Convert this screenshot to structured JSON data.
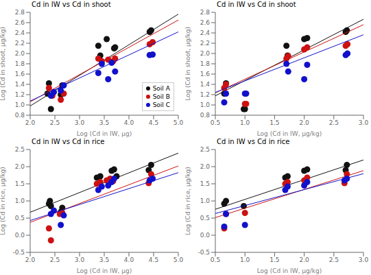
{
  "chart_data": [
    {
      "type": "scatter",
      "title": "Cd in IW vs Cd in shoot",
      "x_label": "Log (Cd in IW, μg)",
      "y_label": "Log (Cd in shoot, μg/kg)",
      "xlim": [
        2.0,
        5.0
      ],
      "ylim": [
        0.8,
        2.8
      ],
      "xticks": [
        {
          "value": 2.0,
          "label": "2.0"
        },
        2.5,
        {
          "value": 3.0,
          "label": "3.0"
        },
        3.5,
        {
          "value": 4.0,
          "label": "4.0"
        },
        4.5,
        {
          "value": 5.0,
          "label": "5.0"
        }
      ],
      "yticks": [
        0.8,
        {
          "value": 1.0,
          "label": "1.0"
        },
        1.2,
        1.4,
        1.6,
        1.8,
        {
          "value": 2.0,
          "label": "2.0"
        },
        2.2,
        2.4,
        2.6,
        2.8
      ],
      "legend": "lower right",
      "series": [
        {
          "name": "Soil A",
          "type": "scatter",
          "color": "#111111",
          "x": [
            2.35,
            2.38,
            2.42,
            2.62,
            2.65,
            3.38,
            3.42,
            3.55,
            3.7,
            3.72,
            4.42,
            4.45
          ],
          "y": [
            1.22,
            1.42,
            0.92,
            1.2,
            1.38,
            2.15,
            1.96,
            2.28,
            2.1,
            2.12,
            2.42,
            2.45
          ]
        },
        {
          "type": "line",
          "color": "#111111",
          "x": [
            2.0,
            5.0
          ],
          "y": [
            0.98,
            2.765
          ]
        },
        {
          "name": "Soil B",
          "type": "scatter",
          "color": "#cc1111",
          "x": [
            2.38,
            2.45,
            2.62,
            2.68,
            3.38,
            3.45,
            3.58,
            3.68,
            3.72,
            4.42,
            4.48
          ],
          "y": [
            1.33,
            1.18,
            1.1,
            1.22,
            1.9,
            1.85,
            1.88,
            1.85,
            1.9,
            2.18,
            2.22
          ]
        },
        {
          "type": "line",
          "color": "#cc1111",
          "x": [
            2.0,
            5.0
          ],
          "y": [
            1.06,
            2.65
          ]
        },
        {
          "name": "Soil C",
          "type": "scatter",
          "color": "#1111cc",
          "x": [
            2.42,
            2.48,
            2.62,
            2.68,
            3.38,
            3.45,
            3.58,
            3.65,
            3.72,
            4.42,
            4.48
          ],
          "y": [
            1.18,
            1.25,
            1.28,
            1.38,
            1.62,
            1.8,
            1.5,
            1.82,
            1.65,
            1.97,
            1.98
          ]
        },
        {
          "type": "line",
          "color": "#1111cc",
          "x": [
            2.0,
            5.0
          ],
          "y": [
            1.076,
            2.42
          ]
        }
      ]
    },
    {
      "type": "scatter",
      "title": "Cd in IW vs Cd in shoot",
      "x_label": "Log (Cd in IW, μg/kg)",
      "y_label": "Log (Cd in shoot, μg/kg)",
      "xlim": [
        0.5,
        3.0
      ],
      "ylim": [
        0.8,
        2.8
      ],
      "xticks": [
        0.5,
        {
          "value": 1.0,
          "label": "1.0"
        },
        1.5,
        {
          "value": 2.0,
          "label": "2.0"
        },
        2.5,
        {
          "value": 3.0,
          "label": "3.0"
        }
      ],
      "yticks": [
        0.8,
        {
          "value": 1.0,
          "label": "1.0"
        },
        1.2,
        1.4,
        1.6,
        1.8,
        {
          "value": 2.0,
          "label": "2.0"
        },
        2.2,
        2.4,
        2.6,
        2.8
      ],
      "series": [
        {
          "name": "Soil A",
          "type": "scatter",
          "color": "#111111",
          "x": [
            0.65,
            0.68,
            0.98,
            1.0,
            1.7,
            1.72,
            2.0,
            2.05,
            2.7,
            2.72
          ],
          "y": [
            1.22,
            1.42,
            0.92,
            0.92,
            2.15,
            1.96,
            2.28,
            2.3,
            2.42,
            2.45
          ]
        },
        {
          "type": "line",
          "color": "#111111",
          "x": [
            0.5,
            3.0
          ],
          "y": [
            1.1775,
            2.665
          ]
        },
        {
          "name": "Soil B",
          "type": "scatter",
          "color": "#cc1111",
          "x": [
            0.65,
            0.68,
            1.0,
            1.02,
            1.7,
            1.73,
            2.0,
            2.05,
            2.7,
            2.73
          ],
          "y": [
            1.33,
            1.4,
            1.02,
            1.02,
            1.9,
            1.95,
            2.08,
            2.12,
            2.15,
            2.18
          ]
        },
        {
          "type": "line",
          "color": "#cc1111",
          "x": [
            0.5,
            3.0
          ],
          "y": [
            1.235,
            2.56
          ]
        },
        {
          "name": "Soil C",
          "type": "scatter",
          "color": "#1111cc",
          "x": [
            0.65,
            0.68,
            1.0,
            1.02,
            1.7,
            1.73,
            2.0,
            2.05,
            2.7,
            2.73
          ],
          "y": [
            1.05,
            1.22,
            1.22,
            1.22,
            1.8,
            1.65,
            1.5,
            1.78,
            1.97,
            2.0
          ]
        },
        {
          "type": "line",
          "color": "#1111cc",
          "x": [
            0.5,
            3.0
          ],
          "y": [
            1.244,
            2.364
          ]
        }
      ]
    },
    {
      "type": "scatter",
      "title": "Cd in IW vs Cd in rice",
      "x_label": "Log (Cd in IW, μg)",
      "y_label": "Log (Cd in rice, μg/kg)",
      "xlim": [
        2.0,
        5.0
      ],
      "ylim": [
        -0.5,
        2.5
      ],
      "xticks": [
        {
          "value": 2.0,
          "label": "2.0"
        },
        2.5,
        {
          "value": 3.0,
          "label": "3.0"
        },
        3.5,
        {
          "value": 4.0,
          "label": "4.0"
        },
        4.5,
        {
          "value": 5.0,
          "label": "5.0"
        }
      ],
      "yticks": [
        -0.5,
        {
          "value": 0.0,
          "label": "0.0"
        },
        0.5,
        {
          "value": 1.0,
          "label": "1.0"
        },
        1.5,
        {
          "value": 2.0,
          "label": "2.0"
        },
        2.5
      ],
      "series": [
        {
          "name": "Soil A",
          "type": "scatter",
          "color": "#111111",
          "x": [
            2.38,
            2.4,
            2.42,
            2.62,
            2.65,
            3.35,
            3.42,
            3.65,
            3.7,
            3.75,
            4.4,
            4.45
          ],
          "y": [
            0.92,
            1.0,
            0.85,
            0.68,
            0.8,
            1.68,
            1.72,
            1.88,
            1.92,
            1.72,
            1.9,
            2.05
          ]
        },
        {
          "type": "line",
          "color": "#111111",
          "x": [
            2.0,
            5.0
          ],
          "y": [
            0.67,
            2.395
          ]
        },
        {
          "name": "Soil B",
          "type": "scatter",
          "color": "#cc1111",
          "x": [
            2.38,
            2.42,
            2.6,
            2.65,
            3.35,
            3.42,
            3.55,
            3.62,
            3.68,
            4.4,
            4.45
          ],
          "y": [
            0.2,
            -0.15,
            0.62,
            0.65,
            1.5,
            1.55,
            1.6,
            1.65,
            1.58,
            1.52,
            1.78
          ]
        },
        {
          "type": "line",
          "color": "#cc1111",
          "x": [
            2.0,
            5.0
          ],
          "y": [
            0.376,
            2.02
          ]
        },
        {
          "name": "Soil C",
          "type": "scatter",
          "color": "#1111cc",
          "x": [
            2.42,
            2.48,
            2.62,
            2.68,
            3.38,
            3.45,
            3.58,
            3.65,
            3.7,
            4.42,
            4.48
          ],
          "y": [
            0.62,
            0.72,
            0.3,
            0.58,
            1.32,
            1.42,
            1.45,
            1.55,
            1.65,
            1.6,
            1.65
          ]
        },
        {
          "type": "line",
          "color": "#1111cc",
          "x": [
            2.0,
            5.0
          ],
          "y": [
            0.43,
            1.825
          ]
        }
      ]
    },
    {
      "type": "scatter",
      "title": "Cd in IW vs Cd in rice",
      "x_label": "Log (Cd in IW, μg/kg)",
      "y_label": "Log (Cd in rice, μg/kg)",
      "xlim": [
        0.5,
        3.0
      ],
      "ylim": [
        -0.5,
        2.5
      ],
      "xticks": [
        0.5,
        {
          "value": 1.0,
          "label": "1.0"
        },
        1.5,
        {
          "value": 2.0,
          "label": "2.0"
        },
        2.5,
        {
          "value": 3.0,
          "label": "3.0"
        }
      ],
      "yticks": [
        -0.5,
        {
          "value": 0.0,
          "label": "0.0"
        },
        0.5,
        {
          "value": 1.0,
          "label": "1.0"
        },
        1.5,
        {
          "value": 2.0,
          "label": "2.0"
        },
        2.5
      ],
      "series": [
        {
          "name": "Soil A",
          "type": "scatter",
          "color": "#111111",
          "x": [
            0.65,
            0.68,
            0.98,
            1.68,
            1.72,
            2.0,
            2.05,
            2.7,
            2.72
          ],
          "y": [
            0.92,
            1.0,
            0.85,
            1.68,
            1.72,
            1.88,
            1.92,
            1.9,
            2.05
          ]
        },
        {
          "type": "line",
          "color": "#111111",
          "x": [
            0.5,
            3.0
          ],
          "y": [
            0.7575,
            2.195
          ]
        },
        {
          "name": "Soil B",
          "type": "scatter",
          "color": "#cc1111",
          "x": [
            0.65,
            0.68,
            1.0,
            1.68,
            1.72,
            2.0,
            2.05,
            2.68,
            2.72
          ],
          "y": [
            0.2,
            0.62,
            0.65,
            1.5,
            1.55,
            1.6,
            1.68,
            1.52,
            1.78
          ]
        },
        {
          "type": "line",
          "color": "#cc1111",
          "x": [
            0.5,
            3.0
          ],
          "y": [
            0.514,
            1.884
          ]
        },
        {
          "name": "Soil C",
          "type": "scatter",
          "color": "#1111cc",
          "x": [
            0.65,
            0.68,
            1.0,
            1.68,
            1.72,
            2.0,
            2.05,
            2.68,
            2.72
          ],
          "y": [
            0.25,
            0.62,
            0.3,
            1.32,
            1.42,
            1.45,
            1.55,
            1.6,
            1.65
          ]
        },
        {
          "type": "line",
          "color": "#1111cc",
          "x": [
            0.5,
            3.0
          ],
          "y": [
            0.6325,
            1.795
          ]
        }
      ]
    }
  ]
}
